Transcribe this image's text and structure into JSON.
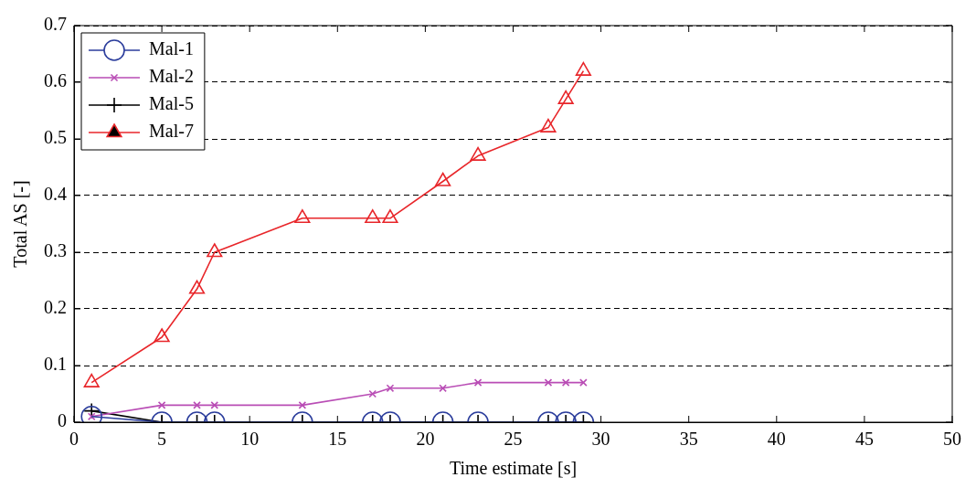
{
  "chart_data": {
    "type": "line",
    "xlabel": "Time estimate [s]",
    "ylabel": "Total AS [-]",
    "x": [
      1,
      5,
      7,
      8,
      13,
      17,
      18,
      21,
      23,
      27,
      28,
      29
    ],
    "xlim": [
      0,
      50
    ],
    "xticks": [
      0,
      5,
      10,
      15,
      20,
      25,
      30,
      35,
      40,
      45,
      50
    ],
    "ylim": [
      0,
      0.7
    ],
    "yticks": [
      0,
      0.1,
      0.2,
      0.3,
      0.4,
      0.5,
      0.6,
      0.7
    ],
    "grid": "y",
    "legend": "top left",
    "line_style": "solid",
    "series": [
      {
        "name": "Mal-1",
        "color": "#2b3d9c",
        "marker": "circle",
        "values": [
          0.01,
          0,
          0,
          0,
          0,
          0,
          0,
          0,
          0,
          0,
          0,
          0
        ]
      },
      {
        "name": "Mal-2",
        "color": "#b94db5",
        "marker": "cross",
        "values": [
          0.01,
          0.03,
          0.03,
          0.03,
          0.03,
          0.05,
          0.06,
          0.06,
          0.07,
          0.07,
          0.07,
          0.07
        ]
      },
      {
        "name": "Mal-5",
        "color": "#000000",
        "marker": "plus",
        "values": [
          0.02,
          0,
          0,
          0,
          0,
          0,
          0,
          0,
          0,
          0,
          0,
          0
        ]
      },
      {
        "name": "Mal-7",
        "color": "#e8262a",
        "marker": "triangle",
        "values": [
          0.07,
          0.15,
          0.235,
          0.3,
          0.36,
          0.36,
          0.36,
          0.425,
          0.47,
          0.52,
          0.57,
          0.62
        ]
      }
    ]
  }
}
